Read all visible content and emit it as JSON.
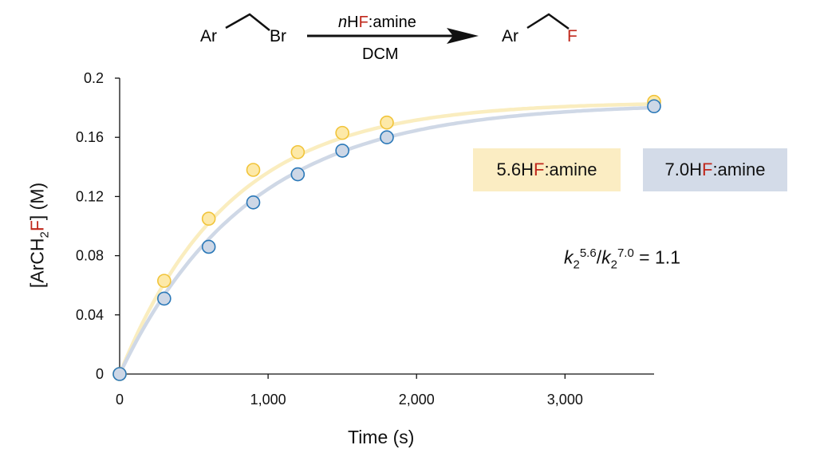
{
  "scheme": {
    "reactant_ar": "Ar",
    "reactant_leaving": "Br",
    "reagent_prefix": "n",
    "reagent_h": "H",
    "reagent_f": "F",
    "reagent_suffix": ":amine",
    "solvent": "DCM",
    "product_ar": "Ar",
    "product_f": "F"
  },
  "ratio_annotation": {
    "k": "k",
    "sub": "2",
    "sup_a": "5.6",
    "slash": "/",
    "sup_b": "7.0",
    "equals": " = 1.1"
  },
  "colors": {
    "yellow_fill": "#fde9a8",
    "yellow_stroke": "#f1c43a",
    "yellow_curve": "#faedbf",
    "blue_fill": "#cdd7e6",
    "blue_stroke": "#2a78b8",
    "blue_curve": "#cfd8e6",
    "legend_yellow_bg": "#fbedc3",
    "legend_blue_bg": "#d3dbe8",
    "fluorine_red": "#c0281c"
  },
  "chart_data": {
    "type": "scatter",
    "xlabel": "Time (s)",
    "ylabel": {
      "prefix": "[ArCH",
      "sub": "2",
      "f": "F",
      "suffix": "] (M)"
    },
    "xlim": [
      0,
      3600
    ],
    "ylim": [
      0,
      0.2
    ],
    "xticks": [
      0,
      1000,
      2000,
      3000
    ],
    "xtick_labels": [
      "0",
      "1,000",
      "2,000",
      "3,000"
    ],
    "yticks": [
      0,
      0.04,
      0.08,
      0.12,
      0.16,
      0.2
    ],
    "ytick_labels": [
      "0",
      "0.04",
      "0.08",
      "0.12",
      "0.16",
      "0.2"
    ],
    "grid": false,
    "series": [
      {
        "name": "5.6HF:amine",
        "legend": {
          "num": "5.6",
          "h": "H",
          "f": "F",
          "suffix": ":amine"
        },
        "x": [
          0,
          300,
          600,
          900,
          1200,
          1500,
          1800,
          3600
        ],
        "y": [
          0,
          0.063,
          0.105,
          0.138,
          0.15,
          0.163,
          0.17,
          0.184
        ],
        "fit": {
          "model": "first-order",
          "plateau": 0.184,
          "k": 0.00135
        }
      },
      {
        "name": "7.0HF:amine",
        "legend": {
          "num": "7.0",
          "h": "H",
          "f": "F",
          "suffix": ":amine"
        },
        "x": [
          0,
          300,
          600,
          900,
          1200,
          1500,
          1800,
          3600
        ],
        "y": [
          0,
          0.051,
          0.086,
          0.116,
          0.135,
          0.151,
          0.16,
          0.181
        ],
        "fit": {
          "model": "first-order",
          "plateau": 0.183,
          "k": 0.00115
        }
      }
    ]
  }
}
